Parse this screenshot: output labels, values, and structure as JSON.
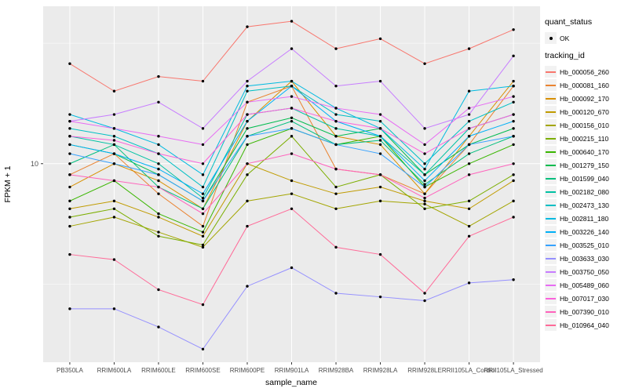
{
  "figure": {
    "bg": "#FFFFFF",
    "panel_bg": "#EBEBEB",
    "grid_color": "#FFFFFF",
    "point_color": "#000000"
  },
  "axes": {
    "x_title": "sample_name",
    "y_title": "FPKM + 1",
    "y_ticks": [
      {
        "label": "10",
        "value": 10
      }
    ],
    "y_minor": [
      3.162,
      31.62
    ],
    "y_range": [
      1.5,
      45
    ]
  },
  "legend": {
    "quant_title": "quant_status",
    "quant_items": [
      {
        "label": "OK"
      }
    ],
    "tracking_title": "tracking_id"
  },
  "chart_data": {
    "type": "line",
    "title": "",
    "xlabel": "sample_name",
    "ylabel": "FPKM + 1",
    "y_scale": "log10",
    "ylim": [
      1.5,
      45
    ],
    "grid": true,
    "legend_position": "right",
    "categories": [
      "PB350LA",
      "RRIM600LA",
      "RRIM600LE",
      "RRIM600SE",
      "RRIM600PE",
      "RRIM901LA",
      "RRIM928BA",
      "RRIM928LA",
      "RRIM928LE",
      "RRII105LA_Control",
      "RRII105LA_Stressed"
    ],
    "series": [
      {
        "name": "Hb_000056_260",
        "color": "#F8766D",
        "values": [
          26,
          20,
          23,
          22,
          37,
          39,
          30,
          33,
          26,
          30,
          36
        ]
      },
      {
        "name": "Hb_000081_160",
        "color": "#EA8331",
        "values": [
          9,
          11,
          7.5,
          5.5,
          18,
          21,
          9.5,
          9,
          7.5,
          12,
          21
        ]
      },
      {
        "name": "Hb_000092_170",
        "color": "#D89000",
        "values": [
          8,
          10,
          8.5,
          6.5,
          15,
          22,
          13,
          12,
          7.5,
          13,
          22
        ]
      },
      {
        "name": "Hb_000120_670",
        "color": "#C09B00",
        "values": [
          6.5,
          7,
          6,
          5,
          10,
          8.5,
          7.5,
          8,
          7,
          6.5,
          8.5
        ]
      },
      {
        "name": "Hb_000156_010",
        "color": "#A3A500",
        "values": [
          5.5,
          6,
          5.2,
          4.5,
          7,
          7.5,
          6.5,
          7,
          6.8,
          5.5,
          7
        ]
      },
      {
        "name": "Hb_000215_110",
        "color": "#7CAE00",
        "values": [
          6,
          6.5,
          5,
          4.6,
          9,
          13,
          8,
          9,
          6.5,
          7,
          9
        ]
      },
      {
        "name": "Hb_000640_170",
        "color": "#39B600",
        "values": [
          7,
          8.5,
          6.2,
          5.2,
          12,
          14,
          12,
          13,
          8,
          10,
          12
        ]
      },
      {
        "name": "Hb_001279_150",
        "color": "#00BB4E",
        "values": [
          12,
          11,
          9,
          7,
          14,
          15.5,
          13,
          14,
          9,
          12,
          14
        ]
      },
      {
        "name": "Hb_001599_040",
        "color": "#00BF7D",
        "values": [
          10,
          12,
          8,
          6.5,
          13,
          15,
          12,
          12.5,
          8.2,
          11,
          13
        ]
      },
      {
        "name": "Hb_002182_080",
        "color": "#00C1A3",
        "values": [
          13,
          12,
          10,
          7.2,
          16,
          17,
          14,
          13,
          9,
          14,
          16
        ]
      },
      {
        "name": "Hb_002473_130",
        "color": "#00BFC4",
        "values": [
          14,
          13,
          11,
          8,
          20,
          21,
          16,
          15,
          10,
          15,
          18
        ]
      },
      {
        "name": "Hb_002811_180",
        "color": "#00BAE0",
        "values": [
          16,
          14,
          12,
          9,
          21,
          22,
          17,
          14,
          9.5,
          20,
          21
        ]
      },
      {
        "name": "Hb_003226_140",
        "color": "#00B0F6",
        "values": [
          12,
          11,
          9.5,
          7.5,
          15,
          21,
          15,
          13,
          8.5,
          13,
          15
        ]
      },
      {
        "name": "Hb_003525_010",
        "color": "#35A2FF",
        "values": [
          11,
          10,
          9,
          7,
          13,
          14,
          12,
          11,
          8,
          12,
          13
        ]
      },
      {
        "name": "Hb_003633_030",
        "color": "#9590FF",
        "values": [
          2.5,
          2.5,
          2.1,
          1.7,
          3.1,
          3.7,
          2.9,
          2.8,
          2.7,
          3.2,
          3.3
        ]
      },
      {
        "name": "Hb_003750_050",
        "color": "#C77CFF",
        "values": [
          15,
          16,
          18,
          14,
          22,
          30,
          21,
          22,
          14,
          16,
          28
        ]
      },
      {
        "name": "Hb_005489_060",
        "color": "#E76BF3",
        "values": [
          15,
          14,
          13,
          12,
          18,
          19,
          17,
          16,
          12,
          17,
          19
        ]
      },
      {
        "name": "Hb_007017_030",
        "color": "#FA62DB",
        "values": [
          13,
          12.5,
          11,
          10,
          16,
          17,
          15,
          14,
          11,
          14,
          16
        ]
      },
      {
        "name": "Hb_007390_010",
        "color": "#FF62BC",
        "values": [
          9,
          8.5,
          8,
          6.2,
          10,
          11,
          9.5,
          9,
          7.2,
          9,
          10
        ]
      },
      {
        "name": "Hb_010964_040",
        "color": "#FF6A98",
        "values": [
          4.2,
          4,
          3,
          2.6,
          5.5,
          6.5,
          4.5,
          4.2,
          2.9,
          5,
          6
        ]
      }
    ]
  }
}
